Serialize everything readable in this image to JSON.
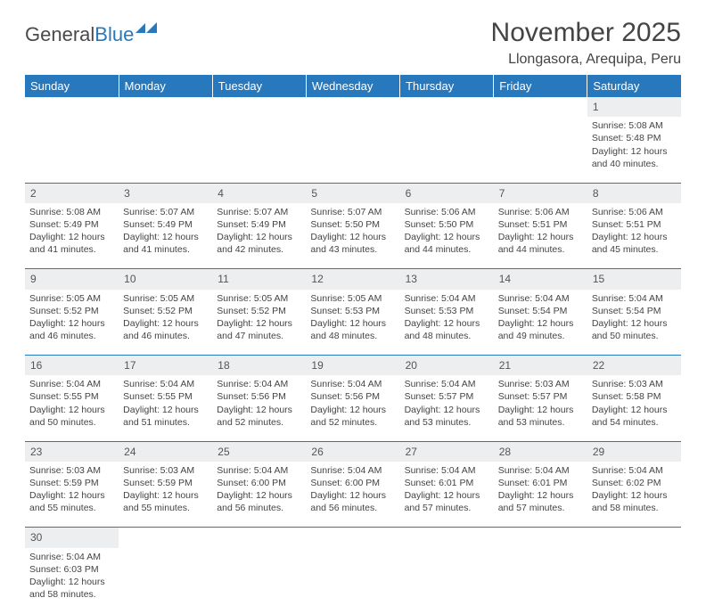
{
  "logo": {
    "part1": "General",
    "part2": "Blue"
  },
  "title": "November 2025",
  "location": "Llongasora, Arequipa, Peru",
  "dayHeaders": [
    "Sunday",
    "Monday",
    "Tuesday",
    "Wednesday",
    "Thursday",
    "Friday",
    "Saturday"
  ],
  "colors": {
    "headerBg": "#2878bd",
    "dayRowBg": "#eceef0",
    "ruleColor": "#2878bd"
  },
  "weeks": [
    {
      "nums": [
        "",
        "",
        "",
        "",
        "",
        "",
        "1"
      ],
      "cells": [
        null,
        null,
        null,
        null,
        null,
        null,
        {
          "sunrise": "Sunrise: 5:08 AM",
          "sunset": "Sunset: 5:48 PM",
          "daylight": "Daylight: 12 hours and 40 minutes."
        }
      ]
    },
    {
      "nums": [
        "2",
        "3",
        "4",
        "5",
        "6",
        "7",
        "8"
      ],
      "cells": [
        {
          "sunrise": "Sunrise: 5:08 AM",
          "sunset": "Sunset: 5:49 PM",
          "daylight": "Daylight: 12 hours and 41 minutes."
        },
        {
          "sunrise": "Sunrise: 5:07 AM",
          "sunset": "Sunset: 5:49 PM",
          "daylight": "Daylight: 12 hours and 41 minutes."
        },
        {
          "sunrise": "Sunrise: 5:07 AM",
          "sunset": "Sunset: 5:49 PM",
          "daylight": "Daylight: 12 hours and 42 minutes."
        },
        {
          "sunrise": "Sunrise: 5:07 AM",
          "sunset": "Sunset: 5:50 PM",
          "daylight": "Daylight: 12 hours and 43 minutes."
        },
        {
          "sunrise": "Sunrise: 5:06 AM",
          "sunset": "Sunset: 5:50 PM",
          "daylight": "Daylight: 12 hours and 44 minutes."
        },
        {
          "sunrise": "Sunrise: 5:06 AM",
          "sunset": "Sunset: 5:51 PM",
          "daylight": "Daylight: 12 hours and 44 minutes."
        },
        {
          "sunrise": "Sunrise: 5:06 AM",
          "sunset": "Sunset: 5:51 PM",
          "daylight": "Daylight: 12 hours and 45 minutes."
        }
      ]
    },
    {
      "nums": [
        "9",
        "10",
        "11",
        "12",
        "13",
        "14",
        "15"
      ],
      "cells": [
        {
          "sunrise": "Sunrise: 5:05 AM",
          "sunset": "Sunset: 5:52 PM",
          "daylight": "Daylight: 12 hours and 46 minutes."
        },
        {
          "sunrise": "Sunrise: 5:05 AM",
          "sunset": "Sunset: 5:52 PM",
          "daylight": "Daylight: 12 hours and 46 minutes."
        },
        {
          "sunrise": "Sunrise: 5:05 AM",
          "sunset": "Sunset: 5:52 PM",
          "daylight": "Daylight: 12 hours and 47 minutes."
        },
        {
          "sunrise": "Sunrise: 5:05 AM",
          "sunset": "Sunset: 5:53 PM",
          "daylight": "Daylight: 12 hours and 48 minutes."
        },
        {
          "sunrise": "Sunrise: 5:04 AM",
          "sunset": "Sunset: 5:53 PM",
          "daylight": "Daylight: 12 hours and 48 minutes."
        },
        {
          "sunrise": "Sunrise: 5:04 AM",
          "sunset": "Sunset: 5:54 PM",
          "daylight": "Daylight: 12 hours and 49 minutes."
        },
        {
          "sunrise": "Sunrise: 5:04 AM",
          "sunset": "Sunset: 5:54 PM",
          "daylight": "Daylight: 12 hours and 50 minutes."
        }
      ]
    },
    {
      "nums": [
        "16",
        "17",
        "18",
        "19",
        "20",
        "21",
        "22"
      ],
      "cells": [
        {
          "sunrise": "Sunrise: 5:04 AM",
          "sunset": "Sunset: 5:55 PM",
          "daylight": "Daylight: 12 hours and 50 minutes."
        },
        {
          "sunrise": "Sunrise: 5:04 AM",
          "sunset": "Sunset: 5:55 PM",
          "daylight": "Daylight: 12 hours and 51 minutes."
        },
        {
          "sunrise": "Sunrise: 5:04 AM",
          "sunset": "Sunset: 5:56 PM",
          "daylight": "Daylight: 12 hours and 52 minutes."
        },
        {
          "sunrise": "Sunrise: 5:04 AM",
          "sunset": "Sunset: 5:56 PM",
          "daylight": "Daylight: 12 hours and 52 minutes."
        },
        {
          "sunrise": "Sunrise: 5:04 AM",
          "sunset": "Sunset: 5:57 PM",
          "daylight": "Daylight: 12 hours and 53 minutes."
        },
        {
          "sunrise": "Sunrise: 5:03 AM",
          "sunset": "Sunset: 5:57 PM",
          "daylight": "Daylight: 12 hours and 53 minutes."
        },
        {
          "sunrise": "Sunrise: 5:03 AM",
          "sunset": "Sunset: 5:58 PM",
          "daylight": "Daylight: 12 hours and 54 minutes."
        }
      ]
    },
    {
      "nums": [
        "23",
        "24",
        "25",
        "26",
        "27",
        "28",
        "29"
      ],
      "cells": [
        {
          "sunrise": "Sunrise: 5:03 AM",
          "sunset": "Sunset: 5:59 PM",
          "daylight": "Daylight: 12 hours and 55 minutes."
        },
        {
          "sunrise": "Sunrise: 5:03 AM",
          "sunset": "Sunset: 5:59 PM",
          "daylight": "Daylight: 12 hours and 55 minutes."
        },
        {
          "sunrise": "Sunrise: 5:04 AM",
          "sunset": "Sunset: 6:00 PM",
          "daylight": "Daylight: 12 hours and 56 minutes."
        },
        {
          "sunrise": "Sunrise: 5:04 AM",
          "sunset": "Sunset: 6:00 PM",
          "daylight": "Daylight: 12 hours and 56 minutes."
        },
        {
          "sunrise": "Sunrise: 5:04 AM",
          "sunset": "Sunset: 6:01 PM",
          "daylight": "Daylight: 12 hours and 57 minutes."
        },
        {
          "sunrise": "Sunrise: 5:04 AM",
          "sunset": "Sunset: 6:01 PM",
          "daylight": "Daylight: 12 hours and 57 minutes."
        },
        {
          "sunrise": "Sunrise: 5:04 AM",
          "sunset": "Sunset: 6:02 PM",
          "daylight": "Daylight: 12 hours and 58 minutes."
        }
      ]
    },
    {
      "nums": [
        "30",
        "",
        "",
        "",
        "",
        "",
        ""
      ],
      "cells": [
        {
          "sunrise": "Sunrise: 5:04 AM",
          "sunset": "Sunset: 6:03 PM",
          "daylight": "Daylight: 12 hours and 58 minutes."
        },
        null,
        null,
        null,
        null,
        null,
        null
      ]
    }
  ]
}
